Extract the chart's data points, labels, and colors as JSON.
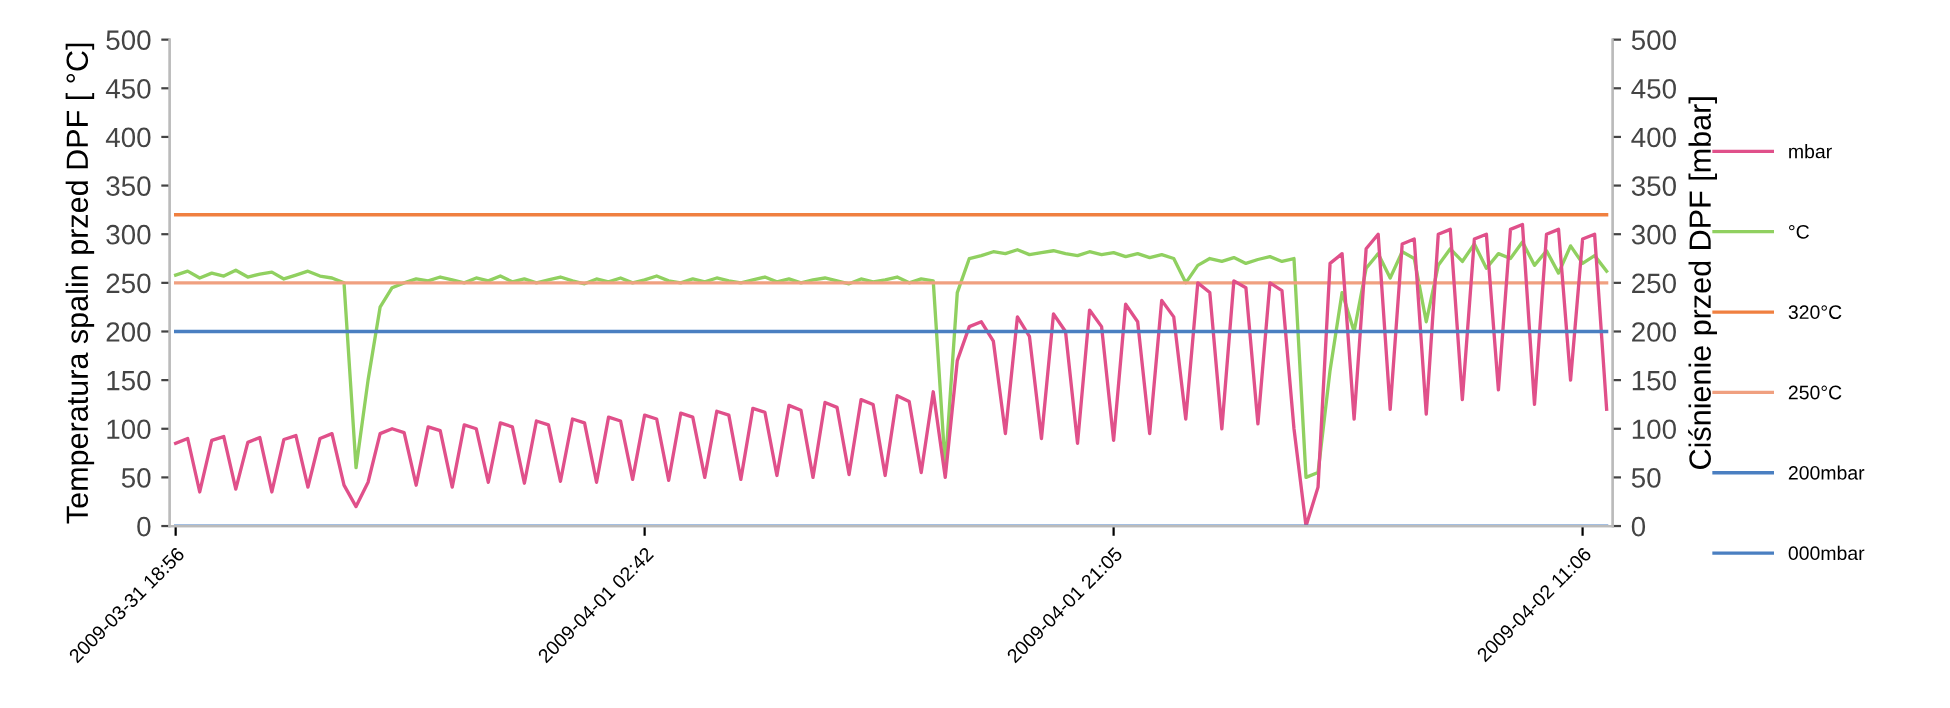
{
  "chart_data": {
    "type": "line",
    "ylabel": "Temperatura spalin przed DPF [ °C]",
    "y2label": "Ciśnienie przed DPF [mbar]",
    "categories": [
      "2009-03-31 18:56",
      null,
      null,
      null,
      null,
      null,
      null,
      null,
      null,
      null,
      null,
      null,
      null,
      null,
      null,
      null,
      null,
      null,
      null,
      null,
      null,
      null,
      null,
      null,
      null,
      null,
      null,
      null,
      null,
      null,
      null,
      null,
      null,
      null,
      null,
      null,
      null,
      null,
      null,
      "2009-04-01 02:42",
      null,
      null,
      null,
      null,
      null,
      null,
      null,
      null,
      null,
      null,
      null,
      null,
      null,
      null,
      null,
      null,
      null,
      null,
      null,
      null,
      null,
      null,
      null,
      null,
      null,
      null,
      null,
      null,
      null,
      null,
      null,
      null,
      null,
      null,
      null,
      null,
      null,
      null,
      "2009-04-01 21:05",
      null,
      null,
      null,
      null,
      null,
      null,
      null,
      null,
      null,
      null,
      null,
      null,
      null,
      null,
      null,
      null,
      null,
      null,
      null,
      null,
      null,
      null,
      null,
      null,
      null,
      null,
      null,
      null,
      null,
      null,
      null,
      null,
      null,
      null,
      null,
      null,
      null,
      null,
      "2009-04-02 11:06",
      null,
      null
    ],
    "ylim": [
      0,
      500
    ],
    "yticks": [
      0,
      50,
      100,
      150,
      200,
      250,
      300,
      350,
      400,
      450,
      500
    ],
    "y2lim": [
      0,
      500
    ],
    "y2ticks": [
      0,
      50,
      100,
      150,
      200,
      250,
      300,
      350,
      400,
      450,
      500
    ],
    "grid": false,
    "legend": "right",
    "marker": "none",
    "series": [
      {
        "name": "mbar",
        "color": "#e0508a",
        "axis": "y2",
        "values": [
          85,
          90,
          35,
          88,
          92,
          38,
          86,
          91,
          35,
          89,
          93,
          40,
          90,
          95,
          42,
          20,
          45,
          95,
          100,
          96,
          42,
          102,
          98,
          40,
          104,
          100,
          45,
          106,
          102,
          44,
          108,
          104,
          46,
          110,
          106,
          45,
          112,
          108,
          48,
          114,
          110,
          47,
          116,
          112,
          50,
          118,
          114,
          48,
          121,
          117,
          52,
          124,
          119,
          50,
          127,
          122,
          53,
          130,
          125,
          52,
          134,
          128,
          55,
          138,
          50,
          170,
          205,
          210,
          190,
          95,
          215,
          195,
          90,
          218,
          200,
          85,
          222,
          205,
          88,
          228,
          210,
          95,
          232,
          215,
          110,
          250,
          240,
          100,
          252,
          245,
          105,
          250,
          242,
          100,
          0,
          40,
          270,
          280,
          110,
          285,
          300,
          120,
          290,
          295,
          115,
          300,
          305,
          130,
          295,
          300,
          140,
          305,
          310,
          125,
          300,
          305,
          150,
          295,
          300,
          120
        ]
      },
      {
        "name": "°C",
        "color": "#90d060",
        "axis": "y",
        "values": [
          258,
          262,
          255,
          260,
          257,
          263,
          256,
          259,
          261,
          254,
          258,
          262,
          257,
          255,
          250,
          60,
          150,
          225,
          245,
          250,
          254,
          252,
          256,
          253,
          250,
          255,
          252,
          257,
          251,
          254,
          250,
          253,
          256,
          252,
          249,
          254,
          251,
          255,
          250,
          253,
          257,
          252,
          250,
          254,
          251,
          255,
          252,
          250,
          253,
          256,
          251,
          254,
          250,
          253,
          255,
          252,
          249,
          254,
          251,
          253,
          256,
          250,
          254,
          252,
          60,
          240,
          275,
          278,
          282,
          280,
          284,
          279,
          281,
          283,
          280,
          278,
          282,
          279,
          281,
          277,
          280,
          276,
          279,
          275,
          250,
          268,
          275,
          272,
          276,
          270,
          274,
          277,
          272,
          275,
          50,
          55,
          160,
          240,
          200,
          265,
          280,
          255,
          282,
          275,
          210,
          268,
          285,
          272,
          290,
          265,
          280,
          275,
          292,
          268,
          283,
          260,
          288,
          270,
          278,
          262
        ]
      },
      {
        "name": "320°C",
        "color": "#f08040",
        "axis": "y",
        "values": [
          320,
          320,
          320,
          320,
          320,
          320,
          320,
          320,
          320,
          320,
          320,
          320,
          320,
          320,
          320,
          320,
          320,
          320,
          320,
          320,
          320,
          320,
          320,
          320,
          320,
          320,
          320,
          320,
          320,
          320,
          320,
          320,
          320,
          320,
          320,
          320,
          320,
          320,
          320,
          320,
          320,
          320,
          320,
          320,
          320,
          320,
          320,
          320,
          320,
          320,
          320,
          320,
          320,
          320,
          320,
          320,
          320,
          320,
          320,
          320,
          320,
          320,
          320,
          320,
          320,
          320,
          320,
          320,
          320,
          320,
          320,
          320,
          320,
          320,
          320,
          320,
          320,
          320,
          320,
          320,
          320,
          320,
          320,
          320,
          320,
          320,
          320,
          320,
          320,
          320,
          320,
          320,
          320,
          320,
          320,
          320,
          320,
          320,
          320,
          320,
          320,
          320,
          320,
          320,
          320,
          320,
          320,
          320,
          320,
          320,
          320,
          320,
          320,
          320,
          320,
          320,
          320,
          320,
          320,
          320
        ]
      },
      {
        "name": "250°C",
        "color": "#f0a080",
        "axis": "y",
        "values": [
          250,
          250,
          250,
          250,
          250,
          250,
          250,
          250,
          250,
          250,
          250,
          250,
          250,
          250,
          250,
          250,
          250,
          250,
          250,
          250,
          250,
          250,
          250,
          250,
          250,
          250,
          250,
          250,
          250,
          250,
          250,
          250,
          250,
          250,
          250,
          250,
          250,
          250,
          250,
          250,
          250,
          250,
          250,
          250,
          250,
          250,
          250,
          250,
          250,
          250,
          250,
          250,
          250,
          250,
          250,
          250,
          250,
          250,
          250,
          250,
          250,
          250,
          250,
          250,
          250,
          250,
          250,
          250,
          250,
          250,
          250,
          250,
          250,
          250,
          250,
          250,
          250,
          250,
          250,
          250,
          250,
          250,
          250,
          250,
          250,
          250,
          250,
          250,
          250,
          250,
          250,
          250,
          250,
          250,
          250,
          250,
          250,
          250,
          250,
          250,
          250,
          250,
          250,
          250,
          250,
          250,
          250,
          250,
          250,
          250,
          250,
          250,
          250,
          250,
          250,
          250,
          250,
          250,
          250,
          250
        ]
      },
      {
        "name": "200mbar",
        "color": "#4a7fc1",
        "axis": "y2",
        "values": [
          200,
          200,
          200,
          200,
          200,
          200,
          200,
          200,
          200,
          200,
          200,
          200,
          200,
          200,
          200,
          200,
          200,
          200,
          200,
          200,
          200,
          200,
          200,
          200,
          200,
          200,
          200,
          200,
          200,
          200,
          200,
          200,
          200,
          200,
          200,
          200,
          200,
          200,
          200,
          200,
          200,
          200,
          200,
          200,
          200,
          200,
          200,
          200,
          200,
          200,
          200,
          200,
          200,
          200,
          200,
          200,
          200,
          200,
          200,
          200,
          200,
          200,
          200,
          200,
          200,
          200,
          200,
          200,
          200,
          200,
          200,
          200,
          200,
          200,
          200,
          200,
          200,
          200,
          200,
          200,
          200,
          200,
          200,
          200,
          200,
          200,
          200,
          200,
          200,
          200,
          200,
          200,
          200,
          200,
          200,
          200,
          200,
          200,
          200,
          200,
          200,
          200,
          200,
          200,
          200,
          200,
          200,
          200,
          200,
          200,
          200,
          200,
          200,
          200,
          200,
          200,
          200,
          200,
          200,
          200
        ]
      },
      {
        "name": "000mbar",
        "color": "#4a7fc1",
        "axis": "y2",
        "values": [
          0,
          0,
          0,
          0,
          0,
          0,
          0,
          0,
          0,
          0,
          0,
          0,
          0,
          0,
          0,
          0,
          0,
          0,
          0,
          0,
          0,
          0,
          0,
          0,
          0,
          0,
          0,
          0,
          0,
          0,
          0,
          0,
          0,
          0,
          0,
          0,
          0,
          0,
          0,
          0,
          0,
          0,
          0,
          0,
          0,
          0,
          0,
          0,
          0,
          0,
          0,
          0,
          0,
          0,
          0,
          0,
          0,
          0,
          0,
          0,
          0,
          0,
          0,
          0,
          0,
          0,
          0,
          0,
          0,
          0,
          0,
          0,
          0,
          0,
          0,
          0,
          0,
          0,
          0,
          0,
          0,
          0,
          0,
          0,
          0,
          0,
          0,
          0,
          0,
          0,
          0,
          0,
          0,
          0,
          0,
          0,
          0,
          0,
          0,
          0,
          0,
          0,
          0,
          0,
          0,
          0,
          0,
          0,
          0,
          0,
          0,
          0,
          0,
          0,
          0,
          0,
          0,
          0,
          0,
          0
        ]
      }
    ]
  }
}
